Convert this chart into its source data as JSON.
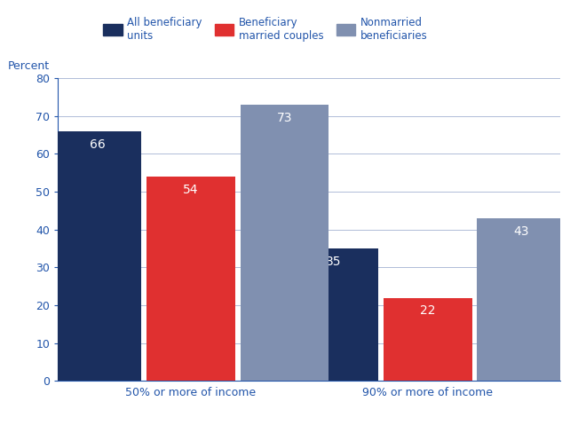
{
  "groups": [
    "50% or more of income",
    "90% or more of income"
  ],
  "series_names": [
    "All beneficiary units",
    "Beneficiary married couples",
    "Nonmarried beneficiaries"
  ],
  "values": [
    [
      66,
      35
    ],
    [
      54,
      22
    ],
    [
      73,
      43
    ]
  ],
  "colors": [
    "#1a2f5e",
    "#e03030",
    "#8090b0"
  ],
  "legend_labels": [
    "All beneficiary\nunits",
    "Beneficiary\nmarried couples",
    "Nonmarried\nbeneficiaries"
  ],
  "ylabel": "Percent",
  "ylim": [
    0,
    80
  ],
  "yticks": [
    0,
    10,
    20,
    30,
    40,
    50,
    60,
    70,
    80
  ],
  "bar_width": 0.18,
  "group_centers": [
    0.3,
    0.78
  ],
  "label_color": "#ffffff",
  "label_fontsize": 10,
  "axis_color": "#2255aa",
  "grid_color": "#b0bcd8",
  "legend_fontsize": 8.5,
  "ylabel_fontsize": 9,
  "xtick_fontsize": 9,
  "ytick_fontsize": 9,
  "background_color": "#ffffff"
}
